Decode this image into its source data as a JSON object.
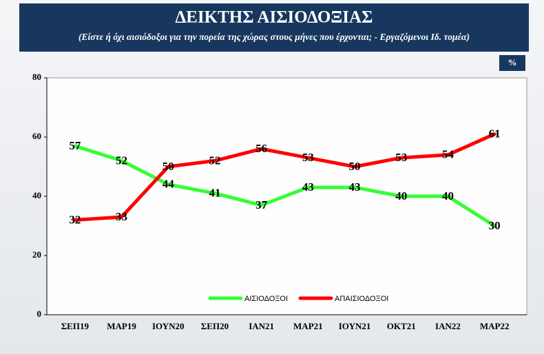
{
  "chart_data": {
    "type": "line",
    "title": "ΔΕΙΚΤΗΣ ΑΙΣΙΟΔΟΞΙΑΣ",
    "subtitle": "(Είστε ή όχι αισιόδοξοι για την πορεία της χώρας στους  μήνες που έρχονται; - Εργαζόμενοι Ιδ. τομέα)",
    "unit_label": "%",
    "categories": [
      "ΣΕΠ19",
      "ΜΑΡ19",
      "ΙΟΥΝ20",
      "ΣΕΠ20",
      "ΙΑΝ21",
      "ΜΑΡ21",
      "ΙΟΥΝ21",
      "ΟΚΤ21",
      "ΙΑΝ22",
      "ΜΑΡ22"
    ],
    "series": [
      {
        "name": "ΑΙΣΙΟΔΟΞΟΙ",
        "color": "#33ff33",
        "values": [
          57,
          52,
          44,
          41,
          37,
          43,
          43,
          40,
          40,
          30
        ]
      },
      {
        "name": "ΑΠΑΙΣΙΟΔΟΞΟΙ",
        "color": "#ff0000",
        "values": [
          32,
          33,
          50,
          52,
          56,
          53,
          50,
          53,
          54,
          61
        ]
      }
    ],
    "ylim": [
      0,
      80
    ],
    "yticks": [
      0,
      20,
      40,
      60,
      80
    ],
    "grid": false,
    "legend": "bottom"
  }
}
